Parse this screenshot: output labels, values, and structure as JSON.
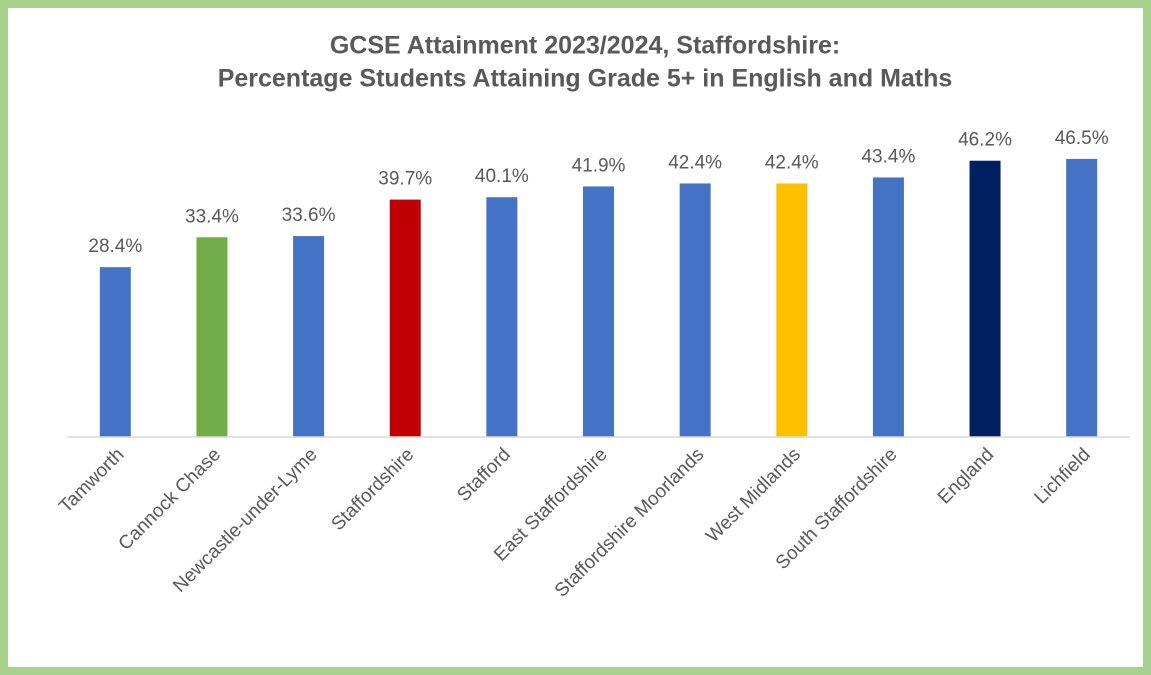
{
  "chart_data": {
    "type": "bar",
    "title": "GCSE Attainment 2023/2024, Staffordshire:",
    "subtitle": "Percentage Students Attaining Grade 5+ in English and Maths",
    "categories": [
      "Tamworth",
      "Cannock Chase",
      "Newcastle-under-Lyme",
      "Staffordshire",
      "Stafford",
      "East Staffordshire",
      "Staffordshire Moorlands",
      "West Midlands",
      "South Staffordshire",
      "England",
      "Lichfield"
    ],
    "values": [
      28.4,
      33.4,
      33.6,
      39.7,
      40.1,
      41.9,
      42.4,
      42.4,
      43.4,
      46.2,
      46.5
    ],
    "value_labels": [
      "28.4%",
      "33.4%",
      "33.6%",
      "39.7%",
      "40.1%",
      "41.9%",
      "42.4%",
      "42.4%",
      "43.4%",
      "46.2%",
      "46.5%"
    ],
    "colors": [
      "#4472c4",
      "#70ad47",
      "#4472c4",
      "#c00000",
      "#4472c4",
      "#4472c4",
      "#4472c4",
      "#ffc000",
      "#4472c4",
      "#002060",
      "#4472c4"
    ],
    "ylim": [
      0,
      50
    ]
  }
}
